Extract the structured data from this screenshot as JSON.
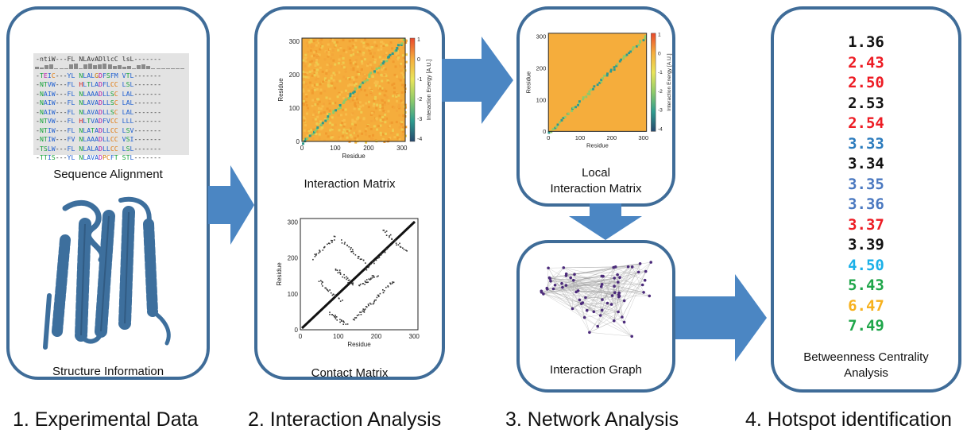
{
  "colors": {
    "panel_border": "#3f6c98",
    "arrow_fill": "#4b86c3",
    "protein": "#3d6f9d",
    "heatmap_bg": "#f5ad3c",
    "red": "#ed1c24",
    "black": "#111111",
    "blue": "#2b7bbd",
    "light_blue": "#1ab0e8",
    "green": "#1fa64a",
    "orange": "#f7b11e"
  },
  "steps": [
    {
      "title": "1. Experimental Data"
    },
    {
      "title": "2. Interaction Analysis"
    },
    {
      "title": "3. Network Analysis"
    },
    {
      "title": "4. Hotspot identification"
    }
  ],
  "panel1": {
    "alignment_label": "Sequence Alignment",
    "structure_label": "Structure Information",
    "alignment_rows": [
      "-ntiW---FL NLAvADllcC lsL-------",
      "-TEIC---YL NLALGDFSFM VTL-------",
      "-NTVW---FL HLTLADFLCC LSL-------",
      "-NAIW---FL NLAAADLLSC LAL-------",
      "-NAIW---FL NLAVADLLSC LAL-------",
      "-NAIW---FL NLAVADLLSC LAL-------",
      "-NTVW---FL HLTVADFVCC LLL-------",
      "-NTIW---FL NLATADLLCC LSV-------",
      "-NTIW---FV NLAAADLLCC VSI-------",
      "-TSLW---FL NLALADLLCC LSL-------",
      "-TTIS---YL NLAVADPCFT STL-------"
    ]
  },
  "panel2": {
    "interaction_label": "Interaction Matrix",
    "contact_label": "Contact Matrix",
    "interaction_axis": {
      "xlabel": "Residue",
      "ylabel": "Residue",
      "ticks": [
        "0",
        "100",
        "200",
        "300"
      ],
      "colorbar_label": "Interaction Energy [A.U.]",
      "colorbar_ticks": [
        "1",
        "0",
        "-1",
        "-2",
        "-3",
        "-4"
      ]
    },
    "contact_axis": {
      "xlabel": "Residue",
      "ylabel": "Residue",
      "ticks": [
        "0",
        "100",
        "200",
        "300"
      ]
    }
  },
  "panel3": {
    "local_label_line1": "Local",
    "local_label_line2": "Interaction Matrix",
    "graph_label": "Interaction Graph",
    "local_axis": {
      "xlabel": "Residue",
      "ylabel": "Residue",
      "ticks": [
        "0",
        "100",
        "200",
        "300"
      ],
      "colorbar_label": "Interaction Energy [A.U.]",
      "colorbar_ticks": [
        "1",
        "0",
        "-1",
        "-2",
        "-3",
        "-4"
      ]
    }
  },
  "panel4": {
    "label_line1": "Betweenness Centrality",
    "label_line2": "Analysis",
    "hotspots": [
      {
        "value": "1.36",
        "color": "#111111"
      },
      {
        "value": "2.43",
        "color": "#ed1c24"
      },
      {
        "value": "2.50",
        "color": "#ed1c24"
      },
      {
        "value": "2.53",
        "color": "#111111"
      },
      {
        "value": "2.54",
        "color": "#ed1c24"
      },
      {
        "value": "3.33",
        "color": "#2b7bbd"
      },
      {
        "value": "3.34",
        "color": "#111111"
      },
      {
        "value": "3.35",
        "color": "#4a78c0"
      },
      {
        "value": "3.36",
        "color": "#4a78c0"
      },
      {
        "value": "3.37",
        "color": "#ed1c24"
      },
      {
        "value": "3.39",
        "color": "#111111"
      },
      {
        "value": "4.50",
        "color": "#1ab0e8"
      },
      {
        "value": "5.43",
        "color": "#1fa64a"
      },
      {
        "value": "6.47",
        "color": "#f7b11e"
      },
      {
        "value": "7.49",
        "color": "#1fa64a"
      }
    ]
  }
}
